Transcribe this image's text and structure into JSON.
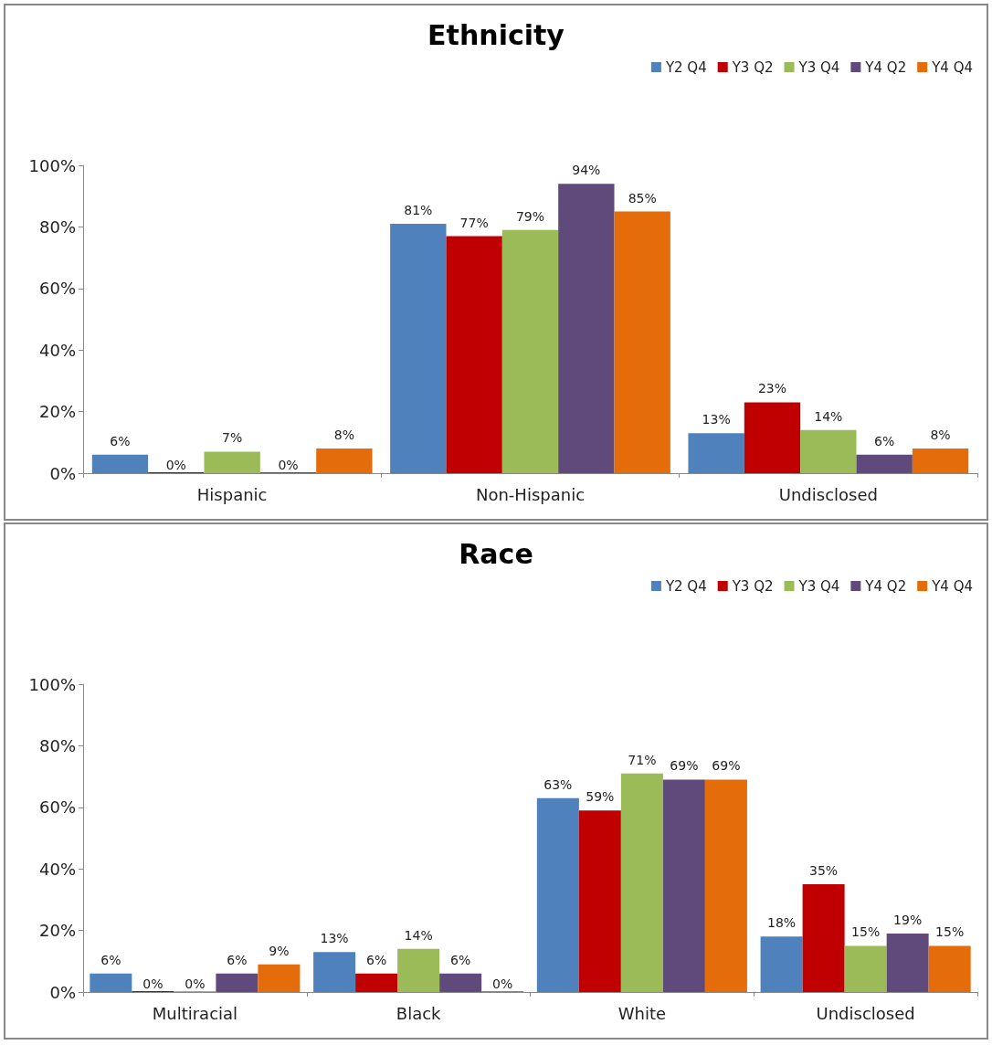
{
  "chart_data": [
    {
      "type": "bar",
      "title": "Ethnicity",
      "categories": [
        "Hispanic",
        "Non-Hispanic",
        "Undisclosed"
      ],
      "ylim": [
        0,
        100
      ],
      "yticks": [
        {
          "value": 0,
          "label": "0%"
        },
        {
          "value": 20,
          "label": "20%"
        },
        {
          "value": 40,
          "label": "40%"
        },
        {
          "value": 60,
          "label": "60%"
        },
        {
          "value": 80,
          "label": "80%"
        },
        {
          "value": 100,
          "label": "100%"
        }
      ],
      "grid": false,
      "legend": "top right",
      "series": [
        {
          "name": "Y2 Q4",
          "color": "#4f81bd",
          "values": [
            6,
            81,
            13
          ],
          "value_labels": [
            "6%",
            "81%",
            "13%"
          ]
        },
        {
          "name": "Y3 Q2",
          "color": "#c00000",
          "values": [
            0,
            77,
            23
          ],
          "value_labels": [
            "0%",
            "77%",
            "23%"
          ]
        },
        {
          "name": "Y3 Q4",
          "color": "#9bbb59",
          "values": [
            7,
            79,
            14
          ],
          "value_labels": [
            "7%",
            "79%",
            "14%"
          ]
        },
        {
          "name": "Y4 Q2",
          "color": "#604a7b",
          "values": [
            0,
            94,
            6
          ],
          "value_labels": [
            "0%",
            "94%",
            "6%"
          ]
        },
        {
          "name": "Y4 Q4",
          "color": "#e46c0a",
          "values": [
            8,
            85,
            8
          ],
          "value_labels": [
            "8%",
            "85%",
            "8%"
          ]
        }
      ]
    },
    {
      "type": "bar",
      "title": "Race",
      "categories": [
        "Multiracial",
        "Black",
        "White",
        "Undisclosed"
      ],
      "ylim": [
        0,
        100
      ],
      "yticks": [
        {
          "value": 0,
          "label": "0%"
        },
        {
          "value": 20,
          "label": "20%"
        },
        {
          "value": 40,
          "label": "40%"
        },
        {
          "value": 60,
          "label": "60%"
        },
        {
          "value": 80,
          "label": "80%"
        },
        {
          "value": 100,
          "label": "100%"
        }
      ],
      "grid": false,
      "legend": "top right",
      "series": [
        {
          "name": "Y2 Q4",
          "color": "#4f81bd",
          "values": [
            6,
            13,
            63,
            18
          ],
          "value_labels": [
            "6%",
            "13%",
            "63%",
            "18%"
          ]
        },
        {
          "name": "Y3 Q2",
          "color": "#c00000",
          "values": [
            0,
            6,
            59,
            35
          ],
          "value_labels": [
            "0%",
            "6%",
            "59%",
            "35%"
          ]
        },
        {
          "name": "Y3 Q4",
          "color": "#9bbb59",
          "values": [
            0,
            14,
            71,
            15
          ],
          "value_labels": [
            "0%",
            "14%",
            "71%",
            "15%"
          ]
        },
        {
          "name": "Y4 Q2",
          "color": "#604a7b",
          "values": [
            6,
            6,
            69,
            19
          ],
          "value_labels": [
            "6%",
            "6%",
            "69%",
            "19%"
          ]
        },
        {
          "name": "Y4 Q4",
          "color": "#e46c0a",
          "values": [
            9,
            0,
            69,
            15
          ],
          "value_labels": [
            "9%",
            "0%",
            "69%",
            "15%"
          ]
        }
      ]
    }
  ]
}
